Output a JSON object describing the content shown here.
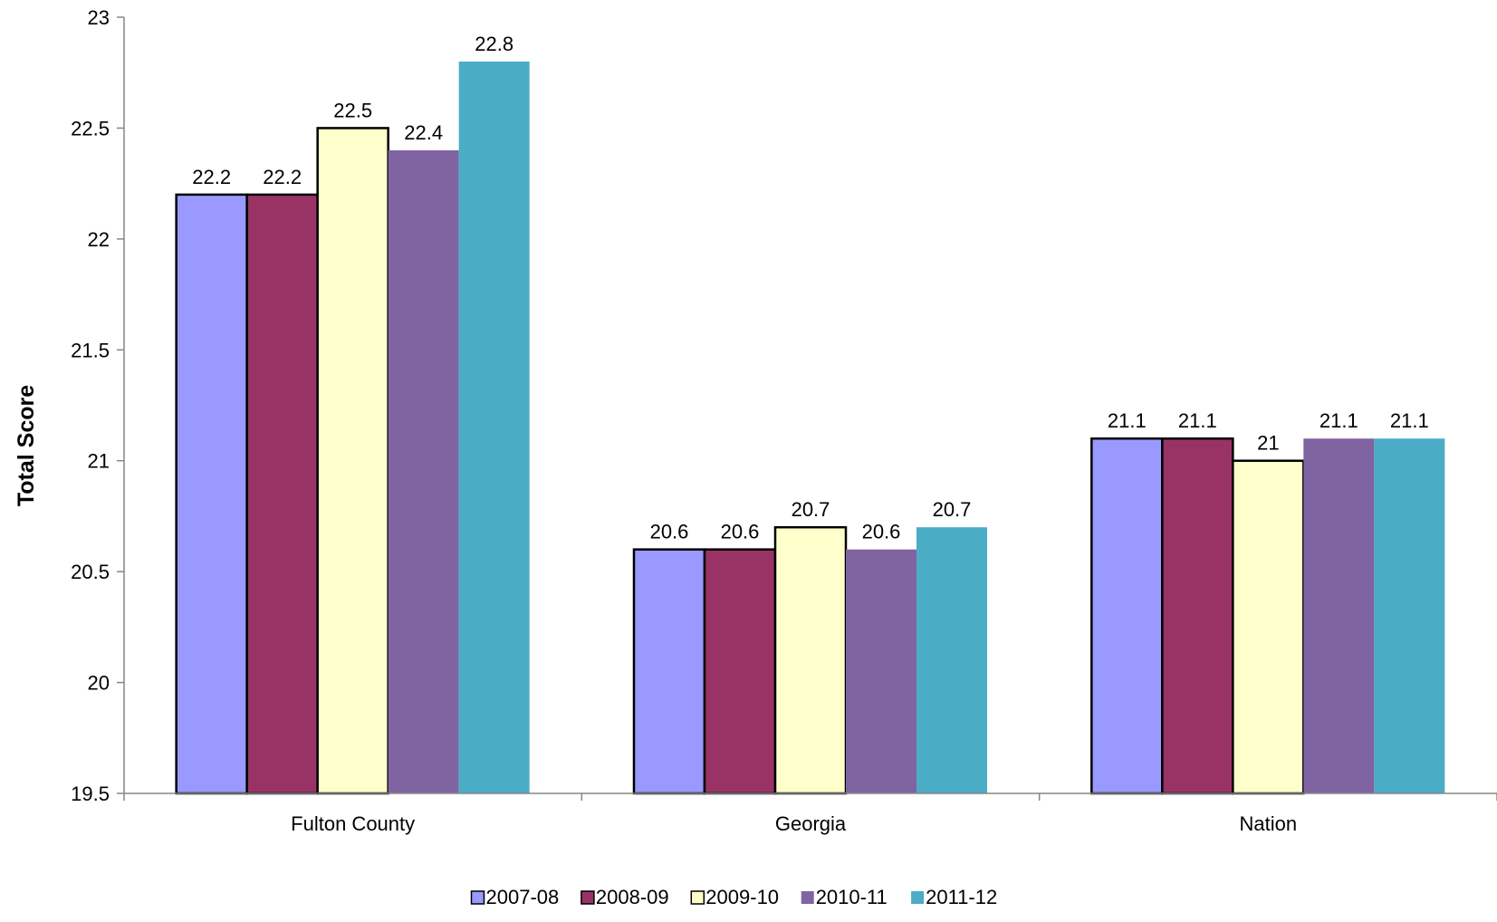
{
  "chart_data": {
    "type": "bar",
    "title": "",
    "xlabel": "",
    "ylabel": "Total Score",
    "ylim": [
      19.5,
      23
    ],
    "yticks": [
      "19.5",
      "20",
      "20.5",
      "21",
      "21.5",
      "22",
      "22.5",
      "23"
    ],
    "categories": [
      "Fulton County",
      "Georgia",
      "Nation"
    ],
    "series": [
      {
        "name": "2007-08",
        "color": "#9999ff",
        "outlined": true,
        "values": [
          22.2,
          20.6,
          21.1
        ],
        "labels": [
          "22.2",
          "20.6",
          "21.1"
        ]
      },
      {
        "name": "2008-09",
        "color": "#993366",
        "outlined": true,
        "values": [
          22.2,
          20.6,
          21.1
        ],
        "labels": [
          "22.2",
          "20.6",
          "21.1"
        ]
      },
      {
        "name": "2009-10",
        "color": "#ffffcc",
        "outlined": true,
        "values": [
          22.5,
          20.7,
          21.0
        ],
        "labels": [
          "22.5",
          "20.7",
          "21"
        ]
      },
      {
        "name": "2010-11",
        "color": "#8064a2",
        "outlined": false,
        "values": [
          22.4,
          20.6,
          21.1
        ],
        "labels": [
          "22.4",
          "20.6",
          "21.1"
        ]
      },
      {
        "name": "2011-12",
        "color": "#4bacc6",
        "outlined": false,
        "values": [
          22.8,
          20.7,
          21.1
        ],
        "labels": [
          "22.8",
          "20.7",
          "21.1"
        ]
      }
    ],
    "legend": "bottom",
    "grid": false
  }
}
